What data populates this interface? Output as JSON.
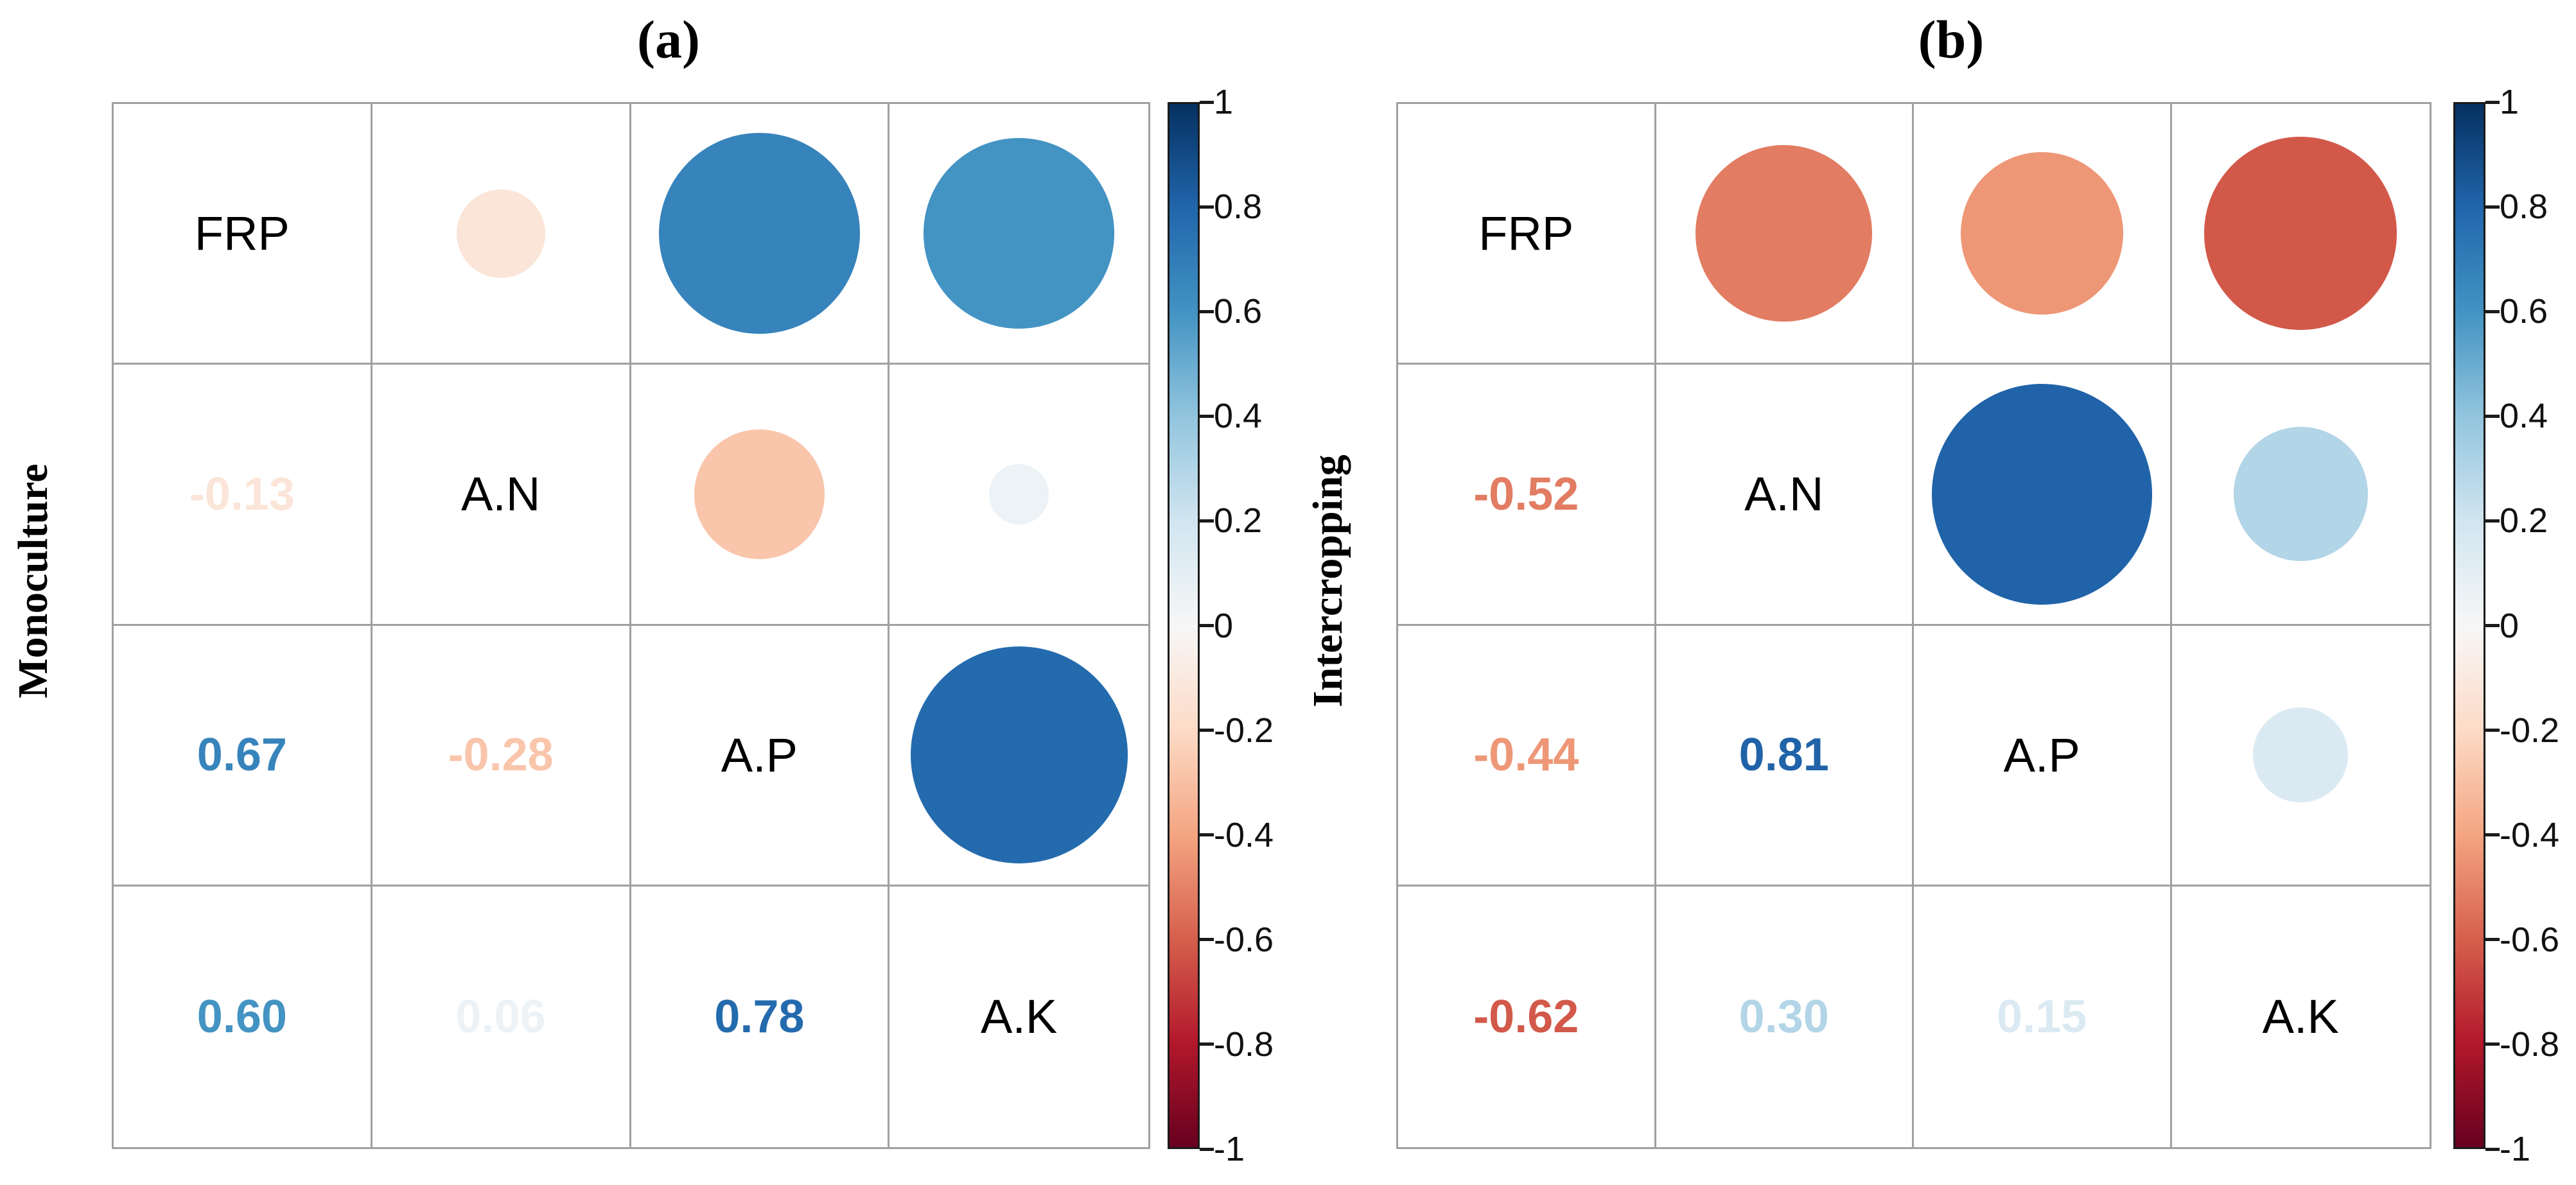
{
  "chart_data": [
    {
      "type": "heatmap",
      "subtype": "correlation-matrix-circles",
      "title": "(a)",
      "ylabel": "Monoculture",
      "variables": [
        "FRP",
        "A.N",
        "A.P",
        "A.K"
      ],
      "matrix": [
        [
          null,
          -0.13,
          0.67,
          0.6
        ],
        [
          -0.13,
          null,
          -0.28,
          0.06
        ],
        [
          0.67,
          -0.28,
          null,
          0.78
        ],
        [
          0.6,
          0.06,
          0.78,
          null
        ]
      ],
      "layout_hint": "upper triangle = circles sized/colored by |r|, lower triangle = bold numeric r values, diagonal = variable names"
    },
    {
      "type": "heatmap",
      "subtype": "correlation-matrix-circles",
      "title": "(b)",
      "ylabel": "Intercropping",
      "variables": [
        "FRP",
        "A.N",
        "A.P",
        "A.K"
      ],
      "matrix": [
        [
          null,
          -0.52,
          -0.44,
          -0.62
        ],
        [
          -0.52,
          null,
          0.81,
          0.3
        ],
        [
          -0.44,
          0.81,
          null,
          0.15
        ],
        [
          -0.62,
          0.3,
          0.15,
          null
        ]
      ],
      "layout_hint": "upper triangle = circles sized/colored by |r|, lower triangle = bold numeric r values, diagonal = variable names"
    }
  ],
  "colorbar": {
    "range": [
      1,
      -1
    ],
    "tick_labels": [
      "1",
      "0.8",
      "0.6",
      "0.4",
      "0.2",
      "0",
      "-0.2",
      "-0.4",
      "-0.6",
      "-0.8",
      "-1"
    ],
    "orientation": "vertical"
  },
  "palette": {
    "name": "RdBu (blue = positive, red = negative)",
    "stops": [
      {
        "value": -1.0,
        "color": "#67001f"
      },
      {
        "value": -0.8,
        "color": "#b2182b"
      },
      {
        "value": -0.6,
        "color": "#d6604d"
      },
      {
        "value": -0.4,
        "color": "#f4a582"
      },
      {
        "value": -0.2,
        "color": "#fddbc7"
      },
      {
        "value": 0.0,
        "color": "#f7f7f7"
      },
      {
        "value": 0.2,
        "color": "#d1e5f0"
      },
      {
        "value": 0.4,
        "color": "#92c5de"
      },
      {
        "value": 0.6,
        "color": "#4393c3"
      },
      {
        "value": 0.8,
        "color": "#2166ac"
      },
      {
        "value": 1.0,
        "color": "#053061"
      }
    ],
    "grid_line_color": "#a0a0a0",
    "colorbar_border_color": "#1a1a1a"
  }
}
